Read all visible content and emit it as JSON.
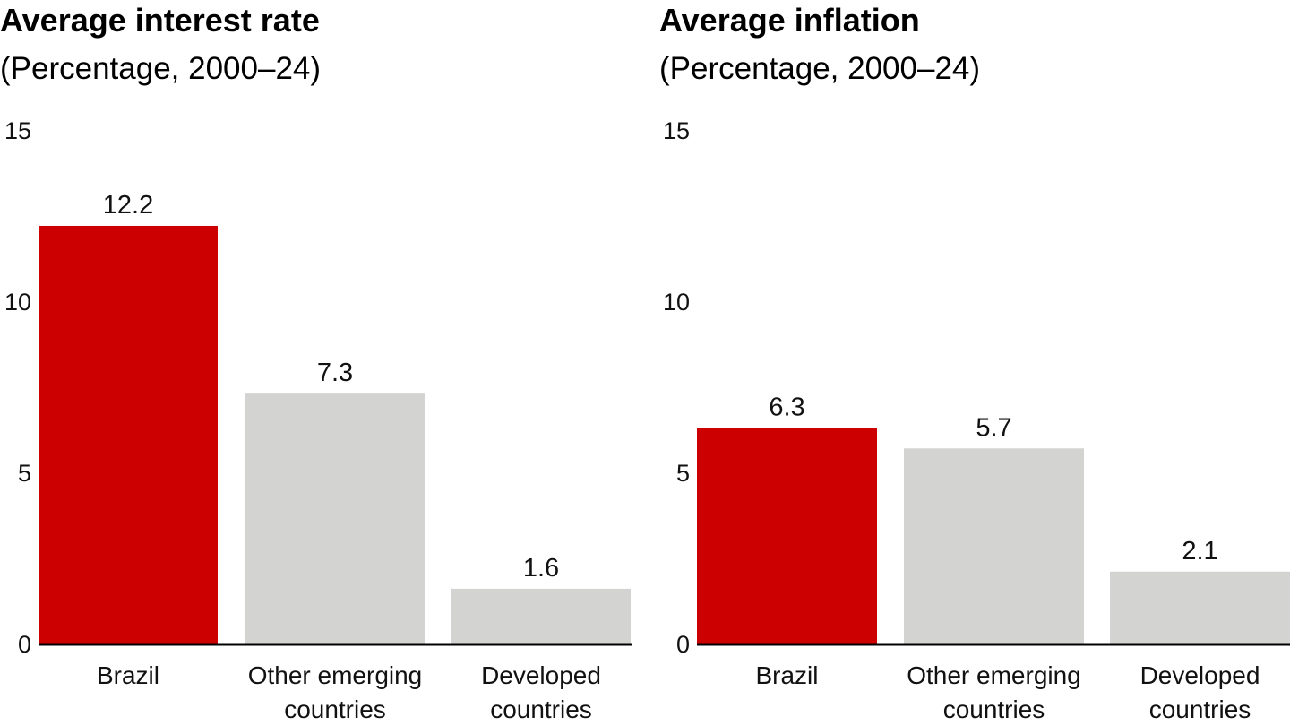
{
  "chart_data": [
    {
      "type": "bar",
      "title": "Average interest rate",
      "subtitle": "(Percentage, 2000–24)",
      "categories": [
        "Brazil",
        "Other emerging countries",
        "Developed countries"
      ],
      "category_lines": [
        [
          "Brazil"
        ],
        [
          "Other emerging",
          "countries"
        ],
        [
          "Developed",
          "countries"
        ]
      ],
      "values": [
        12.2,
        7.3,
        1.6
      ],
      "value_labels": [
        "12.2",
        "7.3",
        "1.6"
      ],
      "colors": [
        "#cc0000",
        "#d3d3d2",
        "#d3d3d2"
      ],
      "ylim": [
        0,
        15
      ],
      "yticks": [
        0,
        5,
        10,
        15
      ],
      "grid": false
    },
    {
      "type": "bar",
      "title": "Average inflation",
      "subtitle": "(Percentage, 2000–24)",
      "categories": [
        "Brazil",
        "Other emerging countries",
        "Developed countries"
      ],
      "category_lines": [
        [
          "Brazil"
        ],
        [
          "Other emerging",
          "countries"
        ],
        [
          "Developed",
          "countries"
        ]
      ],
      "values": [
        6.3,
        5.7,
        2.1
      ],
      "value_labels": [
        "6.3",
        "5.7",
        "2.1"
      ],
      "colors": [
        "#cc0000",
        "#d3d3d2",
        "#d3d3d2"
      ],
      "ylim": [
        0,
        15
      ],
      "yticks": [
        0,
        5,
        10,
        15
      ],
      "grid": false
    }
  ]
}
